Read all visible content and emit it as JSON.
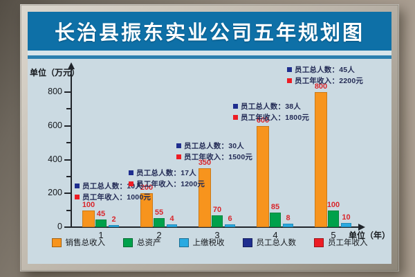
{
  "board": {
    "title": "长治县振东实业公司五年规划图"
  },
  "chart_data": {
    "type": "bar",
    "title": "长治县振东实业公司五年规划图",
    "y_axis_unit": "单位（万元）",
    "x_axis_unit": "单位（年）",
    "ylim": [
      0,
      800
    ],
    "yticks": [
      0,
      200,
      400,
      600,
      800
    ],
    "grid": false,
    "legend_position": "bottom",
    "categories": [
      "1",
      "2",
      "3",
      "4",
      "5"
    ],
    "series": [
      {
        "name": "销售总收入",
        "color": "#f7941d",
        "values": [
          100,
          200,
          350,
          600,
          800
        ]
      },
      {
        "name": "总资产",
        "color": "#00a14b",
        "values": [
          45,
          55,
          70,
          85,
          100
        ]
      },
      {
        "name": "上缴税收",
        "color": "#29aae1",
        "values": [
          2,
          4,
          6,
          8,
          10
        ]
      }
    ],
    "value_label_color": "#d9252b",
    "annotation_labels": {
      "people": "员工总人数",
      "income": "员工年收入",
      "people_color": "#1f2e8f",
      "income_color": "#ed1c24"
    },
    "annotations": [
      {
        "people": "10人",
        "income": "1000元"
      },
      {
        "people": "17人",
        "income": "1200元"
      },
      {
        "people": "30人",
        "income": "1500元"
      },
      {
        "people": "38人",
        "income": "1800元"
      },
      {
        "people": "45人",
        "income": "2200元"
      }
    ],
    "legend": [
      {
        "label": "销售总收入",
        "color": "#f7941d"
      },
      {
        "label": "总资产",
        "color": "#00a14b"
      },
      {
        "label": "上缴税收",
        "color": "#29aae1"
      },
      {
        "label": "员工总人数",
        "color": "#1f2e8f"
      },
      {
        "label": "员工年收入",
        "color": "#ed1c24"
      }
    ]
  }
}
